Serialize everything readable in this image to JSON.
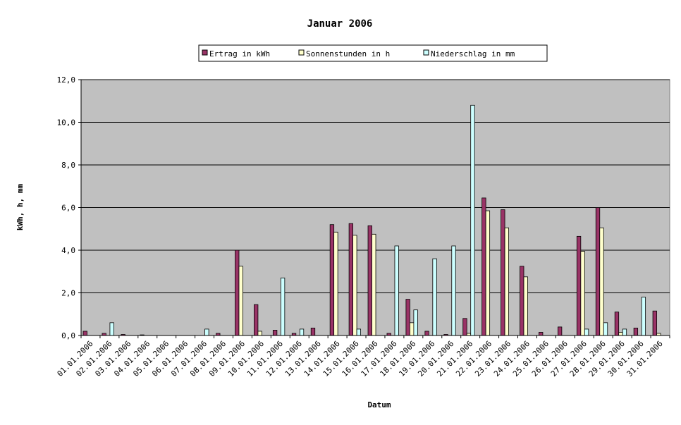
{
  "chart_data": {
    "type": "bar",
    "title": "Januar 2006",
    "xlabel": "Datum",
    "ylabel": "kWh, h, mm",
    "ylim": [
      0,
      12
    ],
    "yticks": [
      "0,0",
      "2,0",
      "4,0",
      "6,0",
      "8,0",
      "10,0",
      "12,0"
    ],
    "grid": true,
    "legend_position": "top",
    "categories": [
      "01.01.2006",
      "02.01.2006",
      "03.01.2006",
      "04.01.2006",
      "05.01.2006",
      "06.01.2006",
      "07.01.2006",
      "08.01.2006",
      "09.01.2006",
      "10.01.2006",
      "11.01.2006",
      "12.01.2006",
      "13.01.2006",
      "14.01.2006",
      "15.01.2006",
      "16.01.2006",
      "17.01.2006",
      "18.01.2006",
      "19.01.2006",
      "20.01.2006",
      "21.01.2006",
      "22.01.2006",
      "23.01.2006",
      "24.01.2006",
      "25.01.2006",
      "26.01.2006",
      "27.01.2006",
      "28.01.2006",
      "29.01.2006",
      "30.01.2006",
      "31.01.2006"
    ],
    "series": [
      {
        "name": "Ertrag in kWh",
        "color": "#993366",
        "values": [
          0.2,
          0.1,
          0.05,
          0.03,
          0,
          0,
          0,
          0.1,
          4.0,
          1.45,
          0.25,
          0.1,
          0.35,
          5.2,
          5.25,
          5.15,
          0.1,
          1.7,
          0.2,
          0.05,
          0.8,
          6.45,
          5.9,
          3.25,
          0.15,
          0.4,
          4.65,
          6.0,
          1.1,
          0.35,
          1.15
        ]
      },
      {
        "name": "Sonnenstunden in h",
        "color": "#FFFFCC",
        "values": [
          0,
          0,
          0,
          0,
          0,
          0,
          0,
          0,
          3.25,
          0.2,
          0,
          0,
          0,
          4.85,
          4.7,
          4.75,
          0,
          0.6,
          0,
          0,
          0.1,
          5.85,
          5.05,
          2.75,
          0,
          0,
          3.95,
          5.05,
          0.15,
          0,
          0.1
        ]
      },
      {
        "name": "Niederschlag in mm",
        "color": "#CCFFFF",
        "values": [
          0,
          0.6,
          0,
          0,
          0,
          0,
          0.3,
          0,
          0,
          0,
          2.7,
          0.3,
          0,
          0,
          0.3,
          0,
          4.2,
          1.2,
          3.6,
          4.2,
          10.8,
          0,
          0,
          0,
          0,
          0,
          0.3,
          0.6,
          0.3,
          1.8,
          0
        ]
      }
    ],
    "plot_background": "#C0C0C0"
  }
}
